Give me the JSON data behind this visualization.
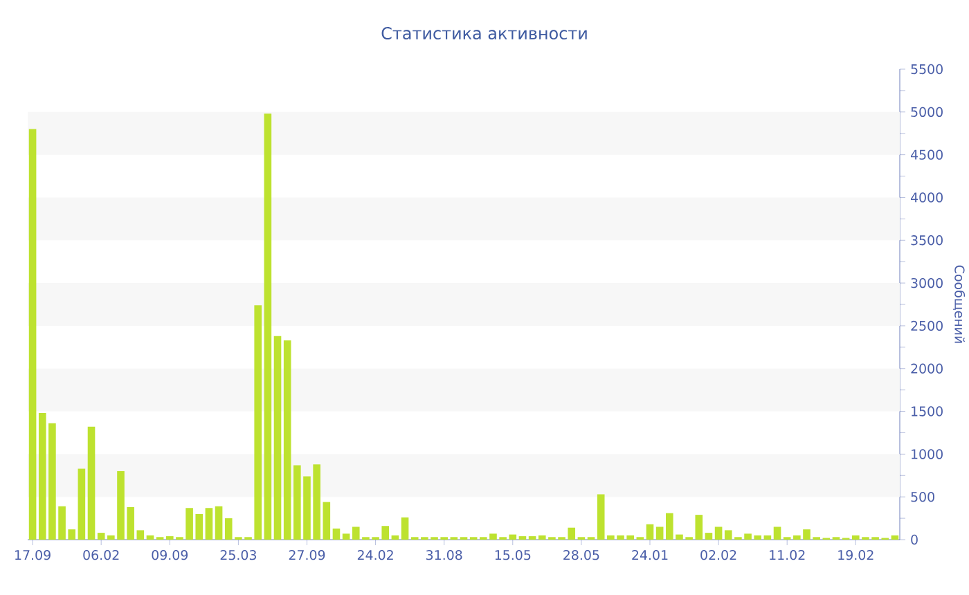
{
  "chart_data": {
    "type": "bar",
    "title": "Статистика активности",
    "ylabel": "Сообщений",
    "categories": [
      "17.09",
      null,
      null,
      null,
      null,
      null,
      null,
      "06.02",
      null,
      null,
      null,
      null,
      null,
      null,
      "09.09",
      null,
      null,
      null,
      null,
      null,
      null,
      "25.03",
      null,
      null,
      null,
      null,
      null,
      null,
      "27.09",
      null,
      null,
      null,
      null,
      null,
      null,
      "24.02",
      null,
      null,
      null,
      null,
      null,
      null,
      "31.08",
      null,
      null,
      null,
      null,
      null,
      null,
      "15.05",
      null,
      null,
      null,
      null,
      null,
      null,
      "28.05",
      null,
      null,
      null,
      null,
      null,
      null,
      "24.01",
      null,
      null,
      null,
      null,
      null,
      null,
      "02.02",
      null,
      null,
      null,
      null,
      null,
      null,
      "11.02",
      null,
      null,
      null,
      null,
      null,
      null,
      "19.02",
      null,
      null,
      null,
      null
    ],
    "values": [
      4800,
      1480,
      1360,
      390,
      120,
      830,
      1320,
      80,
      50,
      800,
      380,
      110,
      50,
      30,
      40,
      30,
      370,
      300,
      370,
      390,
      250,
      30,
      30,
      2740,
      4980,
      2380,
      2330,
      870,
      740,
      880,
      440,
      130,
      70,
      150,
      30,
      30,
      160,
      50,
      260,
      30,
      30,
      30,
      30,
      30,
      30,
      30,
      30,
      70,
      30,
      60,
      40,
      40,
      50,
      30,
      30,
      140,
      30,
      30,
      530,
      50,
      50,
      50,
      30,
      180,
      150,
      310,
      60,
      30,
      290,
      80,
      150,
      110,
      30,
      70,
      50,
      50,
      150,
      30,
      50,
      120,
      30,
      20,
      30,
      20,
      50,
      30,
      30,
      20,
      50
    ],
    "color": "#bde22f",
    "ylim": [
      0,
      5500
    ],
    "yticks": [
      0,
      {
        "value": 250,
        "label": null
      },
      500,
      {
        "value": 750,
        "label": null
      },
      1000,
      {
        "value": 1250,
        "label": null
      },
      1500,
      {
        "value": 1750,
        "label": null
      },
      2000,
      {
        "value": 2250,
        "label": null
      },
      2500,
      {
        "value": 2750,
        "label": null
      },
      3000,
      {
        "value": 3250,
        "label": null
      },
      3500,
      {
        "value": 3750,
        "label": null
      },
      4000,
      {
        "value": 4250,
        "label": null
      },
      4500,
      {
        "value": 4750,
        "label": null
      },
      5000,
      {
        "value": 5250,
        "label": null
      },
      5500
    ],
    "bands": [
      {
        "axis": "y",
        "from": 500,
        "to": 1000,
        "color": "#f7f7f7"
      },
      {
        "axis": "y",
        "from": 1500,
        "to": 2000,
        "color": "#f7f7f7"
      },
      {
        "axis": "y",
        "from": 2500,
        "to": 3000,
        "color": "#f7f7f7"
      },
      {
        "axis": "y",
        "from": 3500,
        "to": 4000,
        "color": "#f7f7f7"
      },
      {
        "axis": "y",
        "from": 4500,
        "to": 5000,
        "color": "#f7f7f7"
      }
    ]
  }
}
